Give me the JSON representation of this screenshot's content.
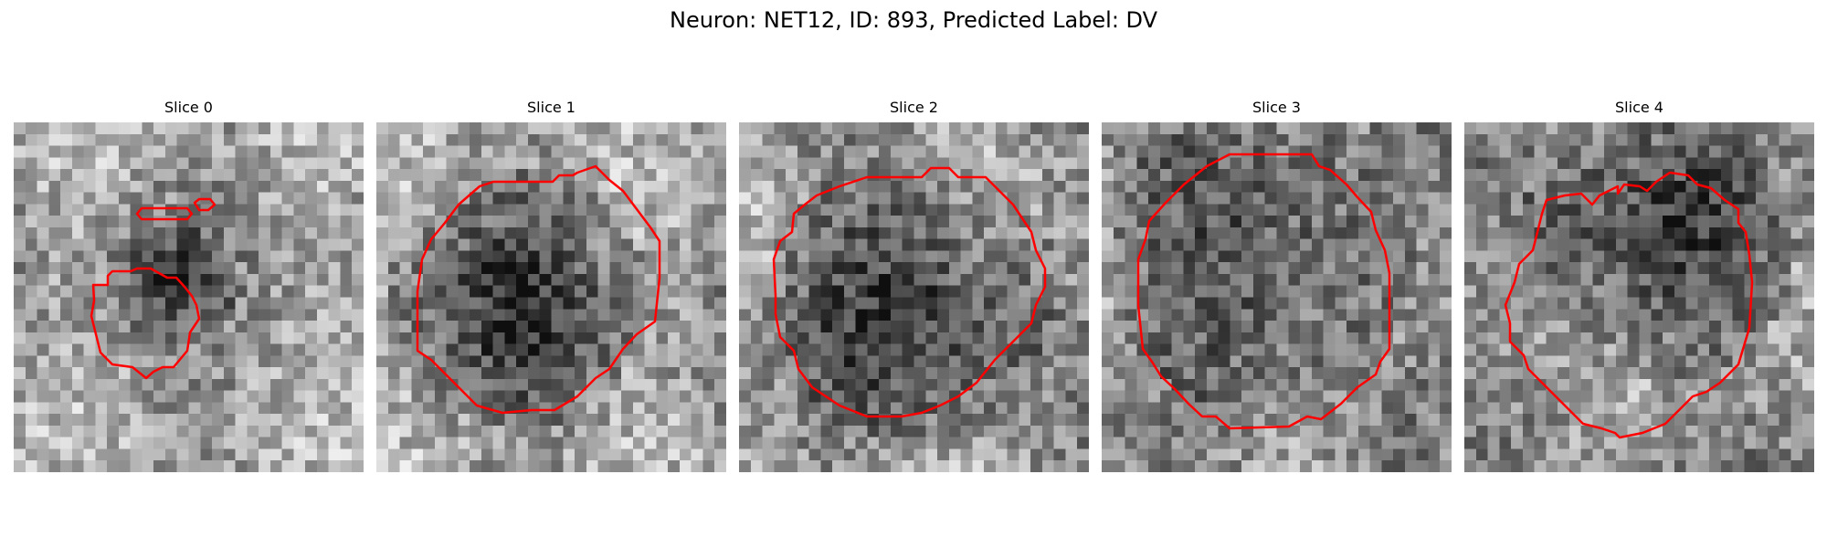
{
  "figure": {
    "title": "Neuron: NET12, ID: 893, Predicted Label: DV"
  },
  "outline_color": "#ff0000",
  "panels": [
    {
      "title": "Slice 0"
    },
    {
      "title": "Slice 1"
    },
    {
      "title": "Slice 2"
    },
    {
      "title": "Slice 3"
    },
    {
      "title": "Slice 4"
    }
  ]
}
